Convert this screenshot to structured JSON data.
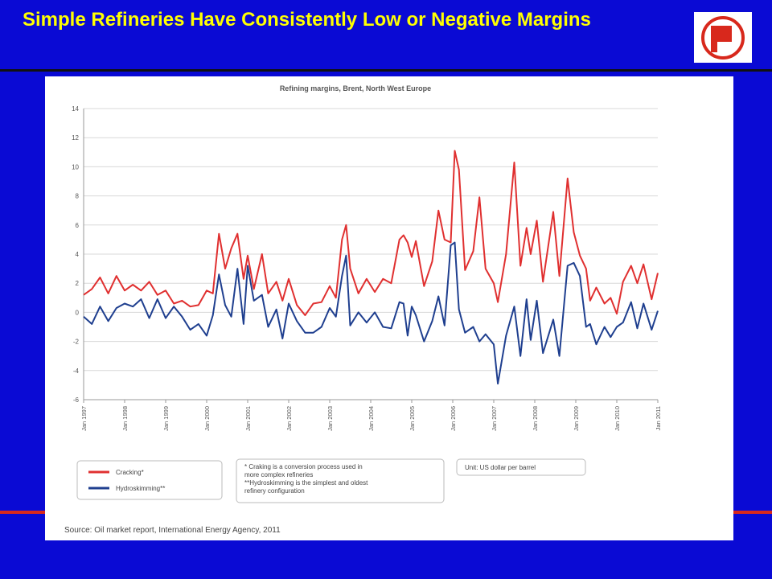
{
  "slide": {
    "title": "Simple Refineries Have Consistently Low or Negative Margins"
  },
  "colors": {
    "background": "#0a0ad4",
    "title": "#ffff00",
    "accent": "#d8281c",
    "cracking": "#e03030",
    "hydroskimming": "#1f3f8f"
  },
  "logo": {
    "icon": "company-p-logo-icon"
  },
  "chart_data": {
    "type": "line",
    "title": "Refining margins, Brent, North West Europe",
    "xlabel": "",
    "ylabel": "",
    "ylim": [
      -6,
      14
    ],
    "yticks": [
      14,
      12,
      10,
      8,
      6,
      4,
      2,
      0,
      -2,
      -4,
      -6
    ],
    "xticks": [
      "Jan 1997",
      "Jan 1998",
      "Jan 1999",
      "Jan 2000",
      "Jan 2001",
      "Jan 2002",
      "Jan 2003",
      "Jan 2004",
      "Jan 2005",
      "Jan 2006",
      "Jan 2007",
      "Jan 2008",
      "Jan 2009",
      "Jan 2010",
      "Jan 2011"
    ],
    "x_range": [
      1997,
      2011
    ],
    "grid": true,
    "series": [
      {
        "name": "Cracking*",
        "color": "#e03030",
        "points": [
          [
            1997.0,
            1.2
          ],
          [
            1997.2,
            1.6
          ],
          [
            1997.4,
            2.4
          ],
          [
            1997.6,
            1.3
          ],
          [
            1997.8,
            2.5
          ],
          [
            1998.0,
            1.5
          ],
          [
            1998.2,
            1.9
          ],
          [
            1998.4,
            1.5
          ],
          [
            1998.6,
            2.1
          ],
          [
            1998.8,
            1.2
          ],
          [
            1999.0,
            1.5
          ],
          [
            1999.2,
            0.6
          ],
          [
            1999.4,
            0.8
          ],
          [
            1999.6,
            0.4
          ],
          [
            1999.8,
            0.5
          ],
          [
            2000.0,
            1.5
          ],
          [
            2000.15,
            1.3
          ],
          [
            2000.3,
            5.4
          ],
          [
            2000.45,
            3.0
          ],
          [
            2000.6,
            4.4
          ],
          [
            2000.75,
            5.4
          ],
          [
            2000.9,
            2.3
          ],
          [
            2001.0,
            3.9
          ],
          [
            2001.15,
            1.6
          ],
          [
            2001.35,
            4.0
          ],
          [
            2001.5,
            1.3
          ],
          [
            2001.7,
            2.1
          ],
          [
            2001.85,
            0.8
          ],
          [
            2002.0,
            2.3
          ],
          [
            2002.2,
            0.5
          ],
          [
            2002.4,
            -0.2
          ],
          [
            2002.6,
            0.6
          ],
          [
            2002.8,
            0.7
          ],
          [
            2003.0,
            1.8
          ],
          [
            2003.15,
            1.0
          ],
          [
            2003.3,
            5.0
          ],
          [
            2003.4,
            6.0
          ],
          [
            2003.5,
            3.0
          ],
          [
            2003.7,
            1.3
          ],
          [
            2003.9,
            2.3
          ],
          [
            2004.1,
            1.4
          ],
          [
            2004.3,
            2.3
          ],
          [
            2004.5,
            2.0
          ],
          [
            2004.7,
            5.0
          ],
          [
            2004.8,
            5.3
          ],
          [
            2004.9,
            4.8
          ],
          [
            2005.0,
            3.8
          ],
          [
            2005.1,
            4.9
          ],
          [
            2005.3,
            1.8
          ],
          [
            2005.5,
            3.5
          ],
          [
            2005.65,
            7.0
          ],
          [
            2005.8,
            5.0
          ],
          [
            2005.95,
            4.8
          ],
          [
            2006.05,
            11.1
          ],
          [
            2006.15,
            9.8
          ],
          [
            2006.3,
            2.9
          ],
          [
            2006.5,
            4.2
          ],
          [
            2006.65,
            7.9
          ],
          [
            2006.8,
            3.0
          ],
          [
            2007.0,
            2.0
          ],
          [
            2007.1,
            0.7
          ],
          [
            2007.3,
            4.0
          ],
          [
            2007.5,
            10.3
          ],
          [
            2007.65,
            3.2
          ],
          [
            2007.8,
            5.8
          ],
          [
            2007.9,
            4.0
          ],
          [
            2008.05,
            6.3
          ],
          [
            2008.2,
            2.1
          ],
          [
            2008.45,
            6.9
          ],
          [
            2008.6,
            2.5
          ],
          [
            2008.8,
            9.2
          ],
          [
            2008.95,
            5.5
          ],
          [
            2009.1,
            3.9
          ],
          [
            2009.25,
            3.0
          ],
          [
            2009.35,
            0.8
          ],
          [
            2009.5,
            1.7
          ],
          [
            2009.7,
            0.6
          ],
          [
            2009.85,
            1.0
          ],
          [
            2010.0,
            -0.1
          ],
          [
            2010.15,
            2.1
          ],
          [
            2010.35,
            3.2
          ],
          [
            2010.5,
            2.0
          ],
          [
            2010.65,
            3.3
          ],
          [
            2010.85,
            0.9
          ],
          [
            2011.0,
            2.7
          ]
        ]
      },
      {
        "name": "Hydroskimming**",
        "color": "#1f3f8f",
        "points": [
          [
            1997.0,
            -0.3
          ],
          [
            1997.2,
            -0.8
          ],
          [
            1997.4,
            0.4
          ],
          [
            1997.6,
            -0.6
          ],
          [
            1997.8,
            0.3
          ],
          [
            1998.0,
            0.6
          ],
          [
            1998.2,
            0.4
          ],
          [
            1998.4,
            0.9
          ],
          [
            1998.6,
            -0.4
          ],
          [
            1998.8,
            0.9
          ],
          [
            1999.0,
            -0.4
          ],
          [
            1999.2,
            0.4
          ],
          [
            1999.4,
            -0.3
          ],
          [
            1999.6,
            -1.2
          ],
          [
            1999.8,
            -0.8
          ],
          [
            2000.0,
            -1.6
          ],
          [
            2000.15,
            -0.2
          ],
          [
            2000.3,
            2.6
          ],
          [
            2000.45,
            0.5
          ],
          [
            2000.6,
            -0.3
          ],
          [
            2000.75,
            3.0
          ],
          [
            2000.9,
            -0.8
          ],
          [
            2001.0,
            3.2
          ],
          [
            2001.15,
            0.8
          ],
          [
            2001.35,
            1.2
          ],
          [
            2001.5,
            -1.0
          ],
          [
            2001.7,
            0.2
          ],
          [
            2001.85,
            -1.8
          ],
          [
            2002.0,
            0.6
          ],
          [
            2002.2,
            -0.6
          ],
          [
            2002.4,
            -1.4
          ],
          [
            2002.6,
            -1.4
          ],
          [
            2002.8,
            -1.0
          ],
          [
            2003.0,
            0.3
          ],
          [
            2003.15,
            -0.3
          ],
          [
            2003.3,
            2.5
          ],
          [
            2003.4,
            3.9
          ],
          [
            2003.5,
            -0.9
          ],
          [
            2003.7,
            0.0
          ],
          [
            2003.9,
            -0.7
          ],
          [
            2004.1,
            0.0
          ],
          [
            2004.3,
            -1.0
          ],
          [
            2004.5,
            -1.1
          ],
          [
            2004.7,
            0.7
          ],
          [
            2004.8,
            0.6
          ],
          [
            2004.9,
            -1.6
          ],
          [
            2005.0,
            0.4
          ],
          [
            2005.1,
            -0.2
          ],
          [
            2005.3,
            -2.0
          ],
          [
            2005.5,
            -0.6
          ],
          [
            2005.65,
            1.1
          ],
          [
            2005.8,
            -0.9
          ],
          [
            2005.95,
            4.6
          ],
          [
            2006.05,
            4.8
          ],
          [
            2006.15,
            0.2
          ],
          [
            2006.3,
            -1.4
          ],
          [
            2006.5,
            -1.0
          ],
          [
            2006.65,
            -2.0
          ],
          [
            2006.8,
            -1.5
          ],
          [
            2007.0,
            -2.2
          ],
          [
            2007.1,
            -4.9
          ],
          [
            2007.3,
            -1.6
          ],
          [
            2007.5,
            0.4
          ],
          [
            2007.65,
            -3.0
          ],
          [
            2007.8,
            0.9
          ],
          [
            2007.9,
            -1.9
          ],
          [
            2008.05,
            0.8
          ],
          [
            2008.2,
            -2.8
          ],
          [
            2008.45,
            -0.5
          ],
          [
            2008.6,
            -3.0
          ],
          [
            2008.8,
            3.2
          ],
          [
            2008.95,
            3.4
          ],
          [
            2009.1,
            2.5
          ],
          [
            2009.25,
            -1.0
          ],
          [
            2009.35,
            -0.8
          ],
          [
            2009.5,
            -2.2
          ],
          [
            2009.7,
            -1.0
          ],
          [
            2009.85,
            -1.7
          ],
          [
            2010.0,
            -1.0
          ],
          [
            2010.15,
            -0.7
          ],
          [
            2010.35,
            0.7
          ],
          [
            2010.5,
            -1.1
          ],
          [
            2010.65,
            0.6
          ],
          [
            2010.85,
            -1.2
          ],
          [
            2011.0,
            0.1
          ]
        ]
      }
    ],
    "legend": {
      "items": [
        "Cracking*",
        "Hydroskimming**"
      ],
      "note_lines": [
        "* Craking is a conversion process used in",
        "more complex refineries",
        "**Hydroskimming is the simplest and oldest",
        "refinery configuration"
      ],
      "unit": "Unit: US dollar per barrel",
      "placement": "bottom"
    },
    "source": "Source: Oil market report, International Energy Agency, 2011"
  }
}
